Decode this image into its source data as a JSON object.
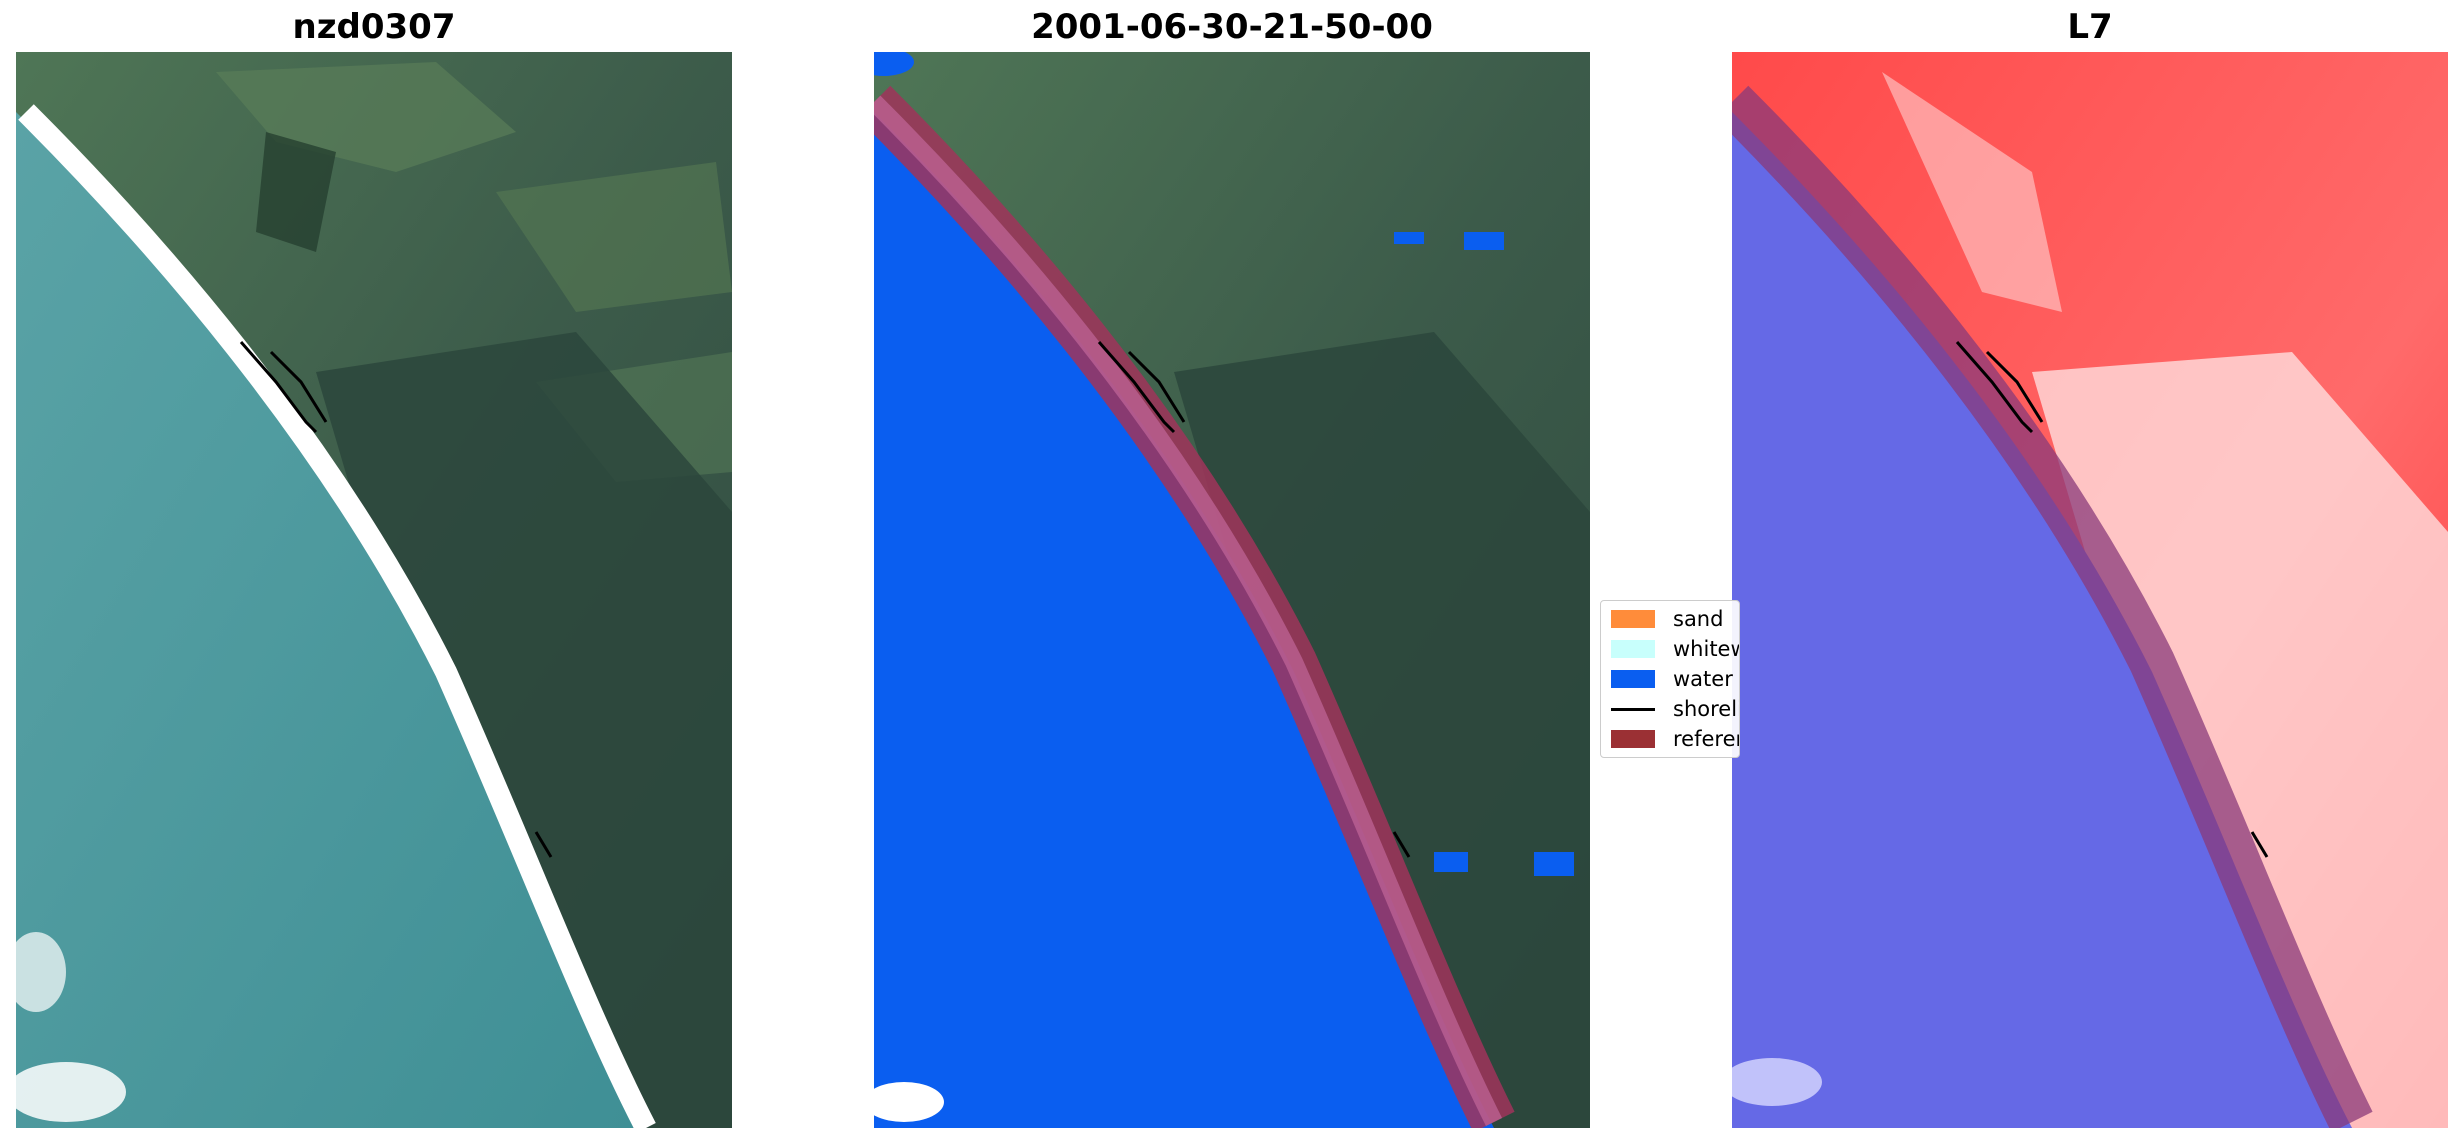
{
  "panels": [
    {
      "title": "nzd0307"
    },
    {
      "title": "2001-06-30-21-50-00"
    },
    {
      "title": "L7"
    }
  ],
  "legend": {
    "items": [
      {
        "label": "sand",
        "color": "#ff8c3a",
        "kind": "patch"
      },
      {
        "label": "whitewater",
        "color": "#c8fffc",
        "kind": "patch"
      },
      {
        "label": "water",
        "color": "#0a5ef0",
        "kind": "patch"
      },
      {
        "label": "shoreline",
        "color": "#000000",
        "kind": "line"
      },
      {
        "label": "reference",
        "color": "#9b3034",
        "kind": "patch"
      }
    ]
  },
  "colors": {
    "sea": "#4f9aa0",
    "land": "#3e5f4e",
    "forest": "#2e4a40",
    "surf": "#ffffff",
    "water_class": "#0a5ef0",
    "reference_buffer": "#a0345a",
    "index_land": "#ff3030",
    "index_water": "#5a5ee0"
  }
}
